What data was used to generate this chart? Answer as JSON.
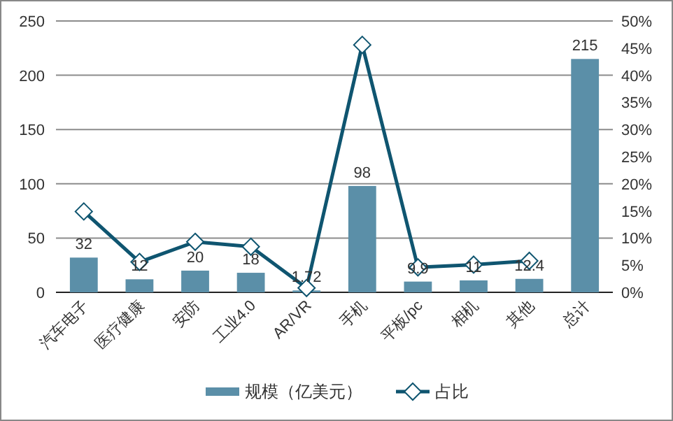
{
  "chart_data": {
    "type": "bar",
    "categories": [
      "汽车电子",
      "医疗健康",
      "安防",
      "工业4.0",
      "AR/VR",
      "手机",
      "平板/pc",
      "相机",
      "其他",
      "总计"
    ],
    "series": [
      {
        "name": "规模（亿美元）",
        "color": "#5b8fa8",
        "values": [
          32,
          12,
          20,
          18,
          1.72,
          98,
          9.9,
          11,
          12.4,
          215
        ],
        "value_labels": [
          "32",
          "12",
          "20",
          "18",
          "1.72",
          "98",
          "9.9",
          "11",
          "12.4",
          "215"
        ]
      },
      {
        "name": "占比",
        "type": "line",
        "axis": "y2",
        "color": "#0f5570",
        "marker": "diamond",
        "values": [
          14.9,
          5.6,
          9.3,
          8.4,
          0.8,
          45.6,
          4.6,
          5.1,
          5.8,
          null
        ]
      }
    ],
    "ylim": [
      0,
      250
    ],
    "yticks": [
      0,
      50,
      100,
      150,
      200,
      250
    ],
    "y2lim": [
      0,
      50
    ],
    "y2ticks": [
      {
        "value": 0,
        "label": "0%"
      },
      {
        "value": 5,
        "label": "5%"
      },
      {
        "value": 10,
        "label": "10%"
      },
      {
        "value": 15,
        "label": "15%"
      },
      {
        "value": 20,
        "label": "20%"
      },
      {
        "value": 25,
        "label": "25%"
      },
      {
        "value": 30,
        "label": "30%"
      },
      {
        "value": 35,
        "label": "35%"
      },
      {
        "value": 40,
        "label": "40%"
      },
      {
        "value": 45,
        "label": "45%"
      },
      {
        "value": 50,
        "label": "50%"
      }
    ],
    "grid": "y",
    "legend": "bottom"
  }
}
